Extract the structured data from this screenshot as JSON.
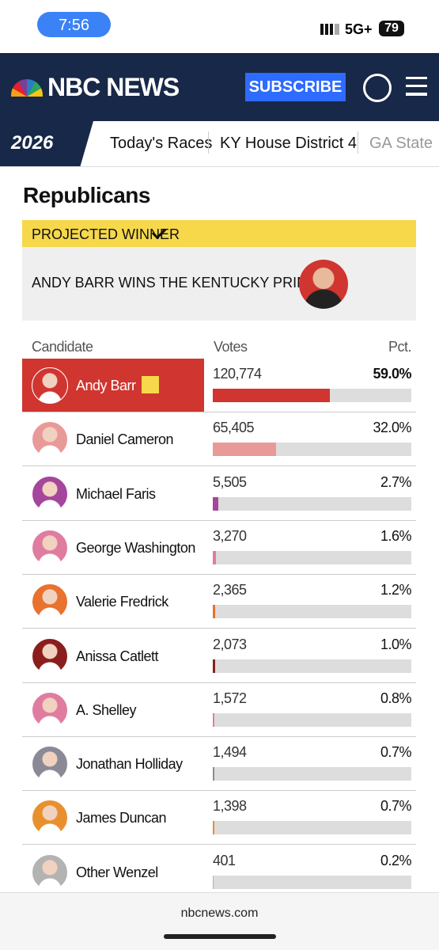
{
  "status_bar": {
    "time": "7:56",
    "network": "5G+",
    "battery": "79"
  },
  "header": {
    "logo": "NBC NEWS",
    "subscribe": "SUBSCRIBE"
  },
  "subnav": {
    "badge": "2026",
    "links": [
      "Today's Races",
      "KY House District 4",
      "GA State"
    ]
  },
  "section": {
    "title": "Republicans",
    "banner": "PROJECTED WINNER",
    "winner": "ANDY BARR WINS THE KENTUCKY PRIMARY"
  },
  "table": {
    "columns": [
      "Candidate",
      "Votes",
      "Pct."
    ],
    "rows": [
      {
        "name": "Andy Barr",
        "votes": "120,774",
        "pct": {
          "value": 59.0,
          "label": "59.0%"
        },
        "color": "#d0352f",
        "winner": true
      },
      {
        "name": "Daniel Cameron",
        "votes": "65,405",
        "pct": {
          "value": 32.0,
          "label": "32.0%"
        },
        "color": "#e89a98"
      },
      {
        "name": "Michael Faris",
        "votes": "5,505",
        "pct": {
          "value": 2.7,
          "label": "2.7%"
        },
        "color": "#a5459c"
      },
      {
        "name": "George Washington",
        "votes": "3,270",
        "pct": {
          "value": 1.6,
          "label": "1.6%"
        },
        "color": "#e07ca0"
      },
      {
        "name": "Valerie Fredrick",
        "votes": "2,365",
        "pct": {
          "value": 1.2,
          "label": "1.2%"
        },
        "color": "#e8722e"
      },
      {
        "name": "Anissa Catlett",
        "votes": "2,073",
        "pct": {
          "value": 1.0,
          "label": "1.0%"
        },
        "color": "#8c1d1d"
      },
      {
        "name": "A. Shelley",
        "votes": "1,572",
        "pct": {
          "value": 0.8,
          "label": "0.8%"
        },
        "color": "#e07ca0"
      },
      {
        "name": "Jonathan Holliday",
        "votes": "1,494",
        "pct": {
          "value": 0.7,
          "label": "0.7%"
        },
        "color": "#8a8a96"
      },
      {
        "name": "James Duncan",
        "votes": "1,398",
        "pct": {
          "value": 0.7,
          "label": "0.7%"
        },
        "color": "#e8902e"
      },
      {
        "name": "Other Wenzel",
        "votes": "401",
        "pct": {
          "value": 0.2,
          "label": "0.2%"
        },
        "color": "#b3b3b3"
      }
    ]
  },
  "footer": {
    "url": "nbcnews.com"
  }
}
